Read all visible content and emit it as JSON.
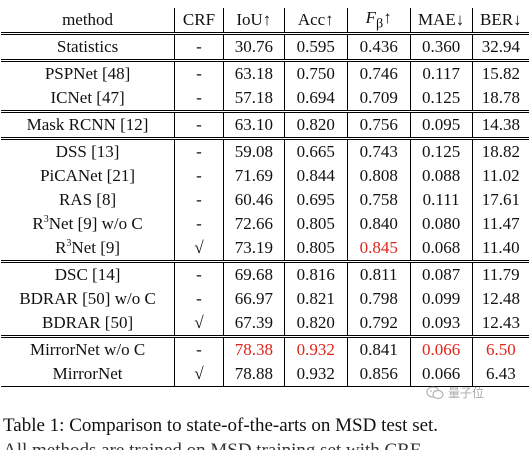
{
  "table": {
    "headers": {
      "method": "method",
      "crf": "CRF",
      "iou": "IoU↑",
      "acc": "Acc↑",
      "fbeta_symbol": "F",
      "fbeta_sub": "β",
      "fbeta_arrow": "↑",
      "mae": "MAE↓",
      "ber": "BER↓"
    },
    "groups": [
      [
        {
          "method": "Statistics",
          "crf": "-",
          "iou": "30.76",
          "acc": "0.595",
          "fbeta": "0.436",
          "mae": "0.360",
          "ber": "32.94"
        }
      ],
      [
        {
          "method": "PSPNet [48]",
          "crf": "-",
          "iou": "63.18",
          "acc": "0.750",
          "fbeta": "0.746",
          "mae": "0.117",
          "ber": "15.82"
        },
        {
          "method": "ICNet [47]",
          "crf": "-",
          "iou": "57.18",
          "acc": "0.694",
          "fbeta": "0.709",
          "mae": "0.125",
          "ber": "18.78"
        }
      ],
      [
        {
          "method": "Mask RCNN [12]",
          "crf": "-",
          "iou": "63.10",
          "acc": "0.820",
          "fbeta": "0.756",
          "mae": "0.095",
          "ber": "14.38"
        }
      ],
      [
        {
          "method": "DSS [13]",
          "crf": "-",
          "iou": "59.08",
          "acc": "0.665",
          "fbeta": "0.743",
          "mae": "0.125",
          "ber": "18.82"
        },
        {
          "method": "PiCANet [21]",
          "crf": "-",
          "iou": "71.69",
          "acc": "0.844",
          "fbeta": "0.808",
          "mae": "0.088",
          "ber": "11.02"
        },
        {
          "method": "RAS [8]",
          "crf": "-",
          "iou": "60.46",
          "acc": "0.695",
          "fbeta": "0.758",
          "mae": "0.111",
          "ber": "17.61"
        },
        {
          "method_main": "R",
          "method_sup": "3",
          "method_rest": "Net [9] w/o C",
          "crf": "-",
          "iou": "72.66",
          "acc": "0.805",
          "fbeta": "0.840",
          "mae": "0.080",
          "ber": "11.47"
        },
        {
          "method_main": "R",
          "method_sup": "3",
          "method_rest": "Net [9]",
          "crf": "√",
          "iou": "73.19",
          "acc": "0.805",
          "fbeta": "0.845",
          "mae": "0.068",
          "ber": "11.40"
        }
      ],
      [
        {
          "method": "DSC [14]",
          "crf": "-",
          "iou": "69.68",
          "acc": "0.816",
          "fbeta": "0.811",
          "mae": "0.087",
          "ber": "11.79"
        },
        {
          "method": "BDRAR [50] w/o C",
          "crf": "-",
          "iou": "66.97",
          "acc": "0.821",
          "fbeta": "0.798",
          "mae": "0.099",
          "ber": "12.48"
        },
        {
          "method": "BDRAR [50]",
          "crf": "√",
          "iou": "67.39",
          "acc": "0.820",
          "fbeta": "0.792",
          "mae": "0.093",
          "ber": "12.43"
        }
      ],
      [
        {
          "method": "MirrorNet w/o C",
          "crf": "-",
          "iou": "78.38",
          "acc": "0.932",
          "fbeta": "0.841",
          "mae": "0.066",
          "ber": "6.50"
        },
        {
          "method": "MirrorNet",
          "crf": "√",
          "iou": "78.88",
          "acc": "0.932",
          "fbeta": "0.856",
          "mae": "0.066",
          "ber": "6.43"
        }
      ]
    ]
  },
  "caption": "Table 1: Comparison to state-of-the-arts on MSD test set.",
  "caption_next_line": "All methods are trained on MSD training set with CRF",
  "watermark": {
    "text": "量子位",
    "icon": "wechat-icon"
  },
  "colors": {
    "highlight_red": "#e0241b"
  }
}
